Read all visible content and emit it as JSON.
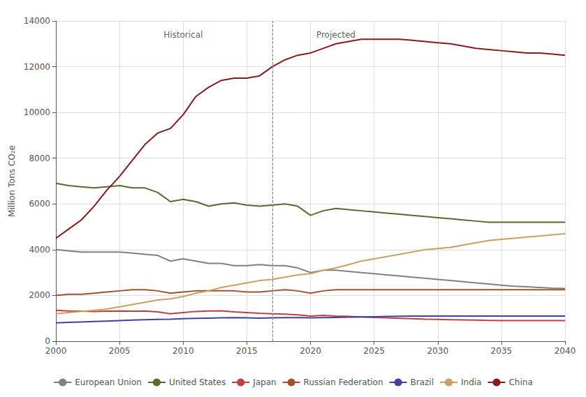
{
  "chart_data": {
    "type": "line",
    "ylabel": "Million Tons CO₂e",
    "xlim": [
      2000,
      2040
    ],
    "ylim": [
      0,
      14000
    ],
    "xticks": [
      2000,
      2005,
      2010,
      2015,
      2020,
      2025,
      2030,
      2035,
      2040
    ],
    "yticks": [
      0,
      2000,
      4000,
      6000,
      8000,
      10000,
      12000,
      14000
    ],
    "grid": true,
    "legend": "bottom",
    "vline": 2017,
    "annotations": [
      {
        "text": "Historical",
        "x": 2010,
        "y": 13400
      },
      {
        "text": "Projected",
        "x": 2022,
        "y": 13400
      }
    ],
    "x": [
      2000,
      2001,
      2002,
      2003,
      2004,
      2005,
      2006,
      2007,
      2008,
      2009,
      2010,
      2011,
      2012,
      2013,
      2014,
      2015,
      2016,
      2017,
      2018,
      2019,
      2020,
      2021,
      2022,
      2023,
      2024,
      2025,
      2026,
      2027,
      2028,
      2029,
      2030,
      2031,
      2032,
      2033,
      2034,
      2035,
      2036,
      2037,
      2038,
      2039,
      2040
    ],
    "series": [
      {
        "name": "European Union",
        "color": "#808080",
        "values": [
          4000,
          3950,
          3900,
          3900,
          3900,
          3900,
          3850,
          3800,
          3750,
          3500,
          3600,
          3500,
          3400,
          3400,
          3300,
          3300,
          3350,
          3300,
          3300,
          3200,
          3000,
          3100,
          3100,
          3050,
          3000,
          2950,
          2900,
          2850,
          2800,
          2750,
          2700,
          2650,
          2600,
          2550,
          2500,
          2450,
          2400,
          2380,
          2350,
          2320,
          2300
        ]
      },
      {
        "name": "United States",
        "color": "#556B2F",
        "values": [
          6900,
          6800,
          6750,
          6700,
          6750,
          6800,
          6700,
          6700,
          6500,
          6100,
          6200,
          6100,
          5900,
          6000,
          6050,
          5950,
          5900,
          5950,
          6000,
          5900,
          5500,
          5700,
          5800,
          5750,
          5700,
          5650,
          5600,
          5550,
          5500,
          5450,
          5400,
          5350,
          5300,
          5250,
          5200,
          5200,
          5200,
          5200,
          5200,
          5200,
          5200
        ]
      },
      {
        "name": "Japan",
        "color": "#C04040",
        "values": [
          1350,
          1320,
          1310,
          1300,
          1310,
          1320,
          1310,
          1320,
          1280,
          1200,
          1250,
          1300,
          1320,
          1330,
          1280,
          1250,
          1220,
          1200,
          1180,
          1150,
          1100,
          1130,
          1100,
          1080,
          1060,
          1040,
          1020,
          1000,
          980,
          960,
          950,
          940,
          930,
          920,
          910,
          900,
          900,
          900,
          900,
          900,
          900
        ]
      },
      {
        "name": "Russian Federation",
        "color": "#A0522D",
        "values": [
          2000,
          2050,
          2050,
          2100,
          2150,
          2200,
          2250,
          2250,
          2200,
          2100,
          2150,
          2200,
          2200,
          2200,
          2200,
          2150,
          2150,
          2200,
          2250,
          2200,
          2100,
          2200,
          2250,
          2250,
          2250,
          2250,
          2250,
          2250,
          2250,
          2250,
          2250,
          2250,
          2250,
          2250,
          2250,
          2250,
          2250,
          2250,
          2250,
          2250,
          2250
        ]
      },
      {
        "name": "Brazil",
        "color": "#4040A0",
        "values": [
          800,
          820,
          840,
          860,
          880,
          900,
          920,
          940,
          950,
          960,
          980,
          1000,
          1010,
          1020,
          1030,
          1020,
          1010,
          1020,
          1030,
          1030,
          1020,
          1030,
          1040,
          1050,
          1060,
          1070,
          1080,
          1090,
          1100,
          1100,
          1100,
          1100,
          1100,
          1100,
          1100,
          1100,
          1100,
          1100,
          1100,
          1100,
          1100
        ]
      },
      {
        "name": "India",
        "color": "#C8A060",
        "values": [
          1200,
          1250,
          1300,
          1350,
          1400,
          1500,
          1600,
          1700,
          1800,
          1850,
          1950,
          2100,
          2200,
          2350,
          2450,
          2550,
          2650,
          2700,
          2800,
          2900,
          2950,
          3100,
          3200,
          3350,
          3500,
          3600,
          3700,
          3800,
          3900,
          4000,
          4050,
          4100,
          4200,
          4300,
          4400,
          4450,
          4500,
          4550,
          4600,
          4650,
          4700
        ]
      },
      {
        "name": "China",
        "color": "#8B1A1A",
        "values": [
          4500,
          4900,
          5300,
          5900,
          6600,
          7200,
          7900,
          8600,
          9100,
          9300,
          9900,
          10700,
          11100,
          11400,
          11500,
          11500,
          11600,
          12000,
          12300,
          12500,
          12600,
          12800,
          13000,
          13100,
          13200,
          13200,
          13200,
          13200,
          13150,
          13100,
          13050,
          13000,
          12900,
          12800,
          12750,
          12700,
          12650,
          12600,
          12600,
          12550,
          12500
        ]
      }
    ]
  }
}
